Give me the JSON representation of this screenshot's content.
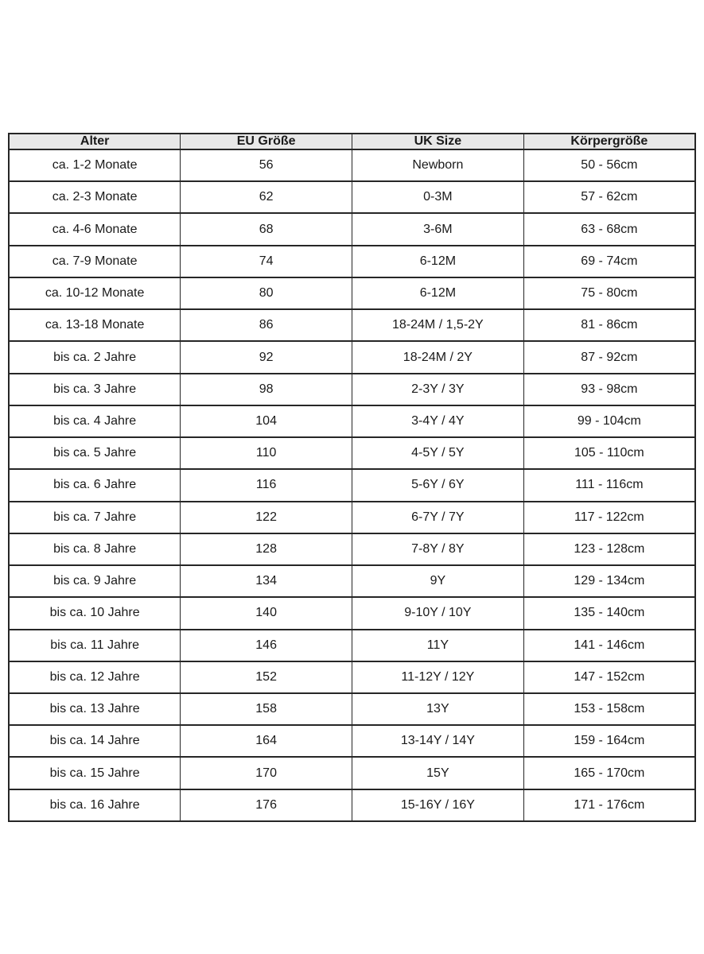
{
  "colors": {
    "background": "#ffffff",
    "border": "#262626",
    "header_bg": "#e8e8e8",
    "text": "#1a1a1a"
  },
  "table": {
    "columns": [
      "Alter",
      "EU Größe",
      "UK Size",
      "Körpergröße"
    ],
    "rows": [
      [
        "ca. 1-2 Monate",
        "56",
        "Newborn",
        "50 - 56cm"
      ],
      [
        "ca. 2-3 Monate",
        "62",
        "0-3M",
        "57 - 62cm"
      ],
      [
        "ca. 4-6 Monate",
        "68",
        "3-6M",
        "63 - 68cm"
      ],
      [
        "ca. 7-9 Monate",
        "74",
        "6-12M",
        "69 - 74cm"
      ],
      [
        "ca. 10-12 Monate",
        "80",
        "6-12M",
        "75 - 80cm"
      ],
      [
        "ca. 13-18 Monate",
        "86",
        "18-24M / 1,5-2Y",
        "81 - 86cm"
      ],
      [
        "bis ca. 2 Jahre",
        "92",
        "18-24M / 2Y",
        "87 - 92cm"
      ],
      [
        "bis ca. 3 Jahre",
        "98",
        "2-3Y / 3Y",
        "93 - 98cm"
      ],
      [
        "bis ca. 4 Jahre",
        "104",
        "3-4Y / 4Y",
        "99 - 104cm"
      ],
      [
        "bis ca. 5 Jahre",
        "110",
        "4-5Y / 5Y",
        "105 - 110cm"
      ],
      [
        "bis ca. 6 Jahre",
        "116",
        "5-6Y / 6Y",
        "111 - 116cm"
      ],
      [
        "bis ca. 7 Jahre",
        "122",
        "6-7Y / 7Y",
        "117 - 122cm"
      ],
      [
        "bis ca. 8 Jahre",
        "128",
        "7-8Y / 8Y",
        "123 - 128cm"
      ],
      [
        "bis ca. 9 Jahre",
        "134",
        "9Y",
        "129 - 134cm"
      ],
      [
        "bis ca. 10 Jahre",
        "140",
        "9-10Y / 10Y",
        "135 - 140cm"
      ],
      [
        "bis ca. 11 Jahre",
        "146",
        "11Y",
        "141 - 146cm"
      ],
      [
        "bis ca. 12 Jahre",
        "152",
        "11-12Y / 12Y",
        "147 - 152cm"
      ],
      [
        "bis ca. 13 Jahre",
        "158",
        "13Y",
        "153 - 158cm"
      ],
      [
        "bis ca. 14 Jahre",
        "164",
        "13-14Y / 14Y",
        "159 - 164cm"
      ],
      [
        "bis ca. 15 Jahre",
        "170",
        "15Y",
        "165 - 170cm"
      ],
      [
        "bis ca. 16 Jahre",
        "176",
        "15-16Y / 16Y",
        "171 - 176cm"
      ]
    ]
  },
  "chart_data": {
    "type": "table",
    "title": "",
    "columns": [
      "Alter",
      "EU Größe",
      "UK Size",
      "Körpergröße"
    ],
    "rows": [
      [
        "ca. 1-2 Monate",
        "56",
        "Newborn",
        "50 - 56cm"
      ],
      [
        "ca. 2-3 Monate",
        "62",
        "0-3M",
        "57 - 62cm"
      ],
      [
        "ca. 4-6 Monate",
        "68",
        "3-6M",
        "63 - 68cm"
      ],
      [
        "ca. 7-9 Monate",
        "74",
        "6-12M",
        "69 - 74cm"
      ],
      [
        "ca. 10-12 Monate",
        "80",
        "6-12M",
        "75 - 80cm"
      ],
      [
        "ca. 13-18 Monate",
        "86",
        "18-24M / 1,5-2Y",
        "81 - 86cm"
      ],
      [
        "bis ca. 2 Jahre",
        "92",
        "18-24M / 2Y",
        "87 - 92cm"
      ],
      [
        "bis ca. 3 Jahre",
        "98",
        "2-3Y / 3Y",
        "93 - 98cm"
      ],
      [
        "bis ca. 4 Jahre",
        "104",
        "3-4Y / 4Y",
        "99 - 104cm"
      ],
      [
        "bis ca. 5 Jahre",
        "110",
        "4-5Y / 5Y",
        "105 - 110cm"
      ],
      [
        "bis ca. 6 Jahre",
        "116",
        "5-6Y / 6Y",
        "111 - 116cm"
      ],
      [
        "bis ca. 7 Jahre",
        "122",
        "6-7Y / 7Y",
        "117 - 122cm"
      ],
      [
        "bis ca. 8 Jahre",
        "128",
        "7-8Y / 8Y",
        "123 - 128cm"
      ],
      [
        "bis ca. 9 Jahre",
        "134",
        "9Y",
        "129 - 134cm"
      ],
      [
        "bis ca. 10 Jahre",
        "140",
        "9-10Y / 10Y",
        "135 - 140cm"
      ],
      [
        "bis ca. 11 Jahre",
        "146",
        "11Y",
        "141 - 146cm"
      ],
      [
        "bis ca. 12 Jahre",
        "152",
        "11-12Y / 12Y",
        "147 - 152cm"
      ],
      [
        "bis ca. 13 Jahre",
        "158",
        "13Y",
        "153 - 158cm"
      ],
      [
        "bis ca. 14 Jahre",
        "164",
        "13-14Y / 14Y",
        "159 - 164cm"
      ],
      [
        "bis ca. 15 Jahre",
        "170",
        "15Y",
        "165 - 170cm"
      ],
      [
        "bis ca. 16 Jahre",
        "176",
        "15-16Y / 16Y",
        "171 - 176cm"
      ]
    ]
  }
}
